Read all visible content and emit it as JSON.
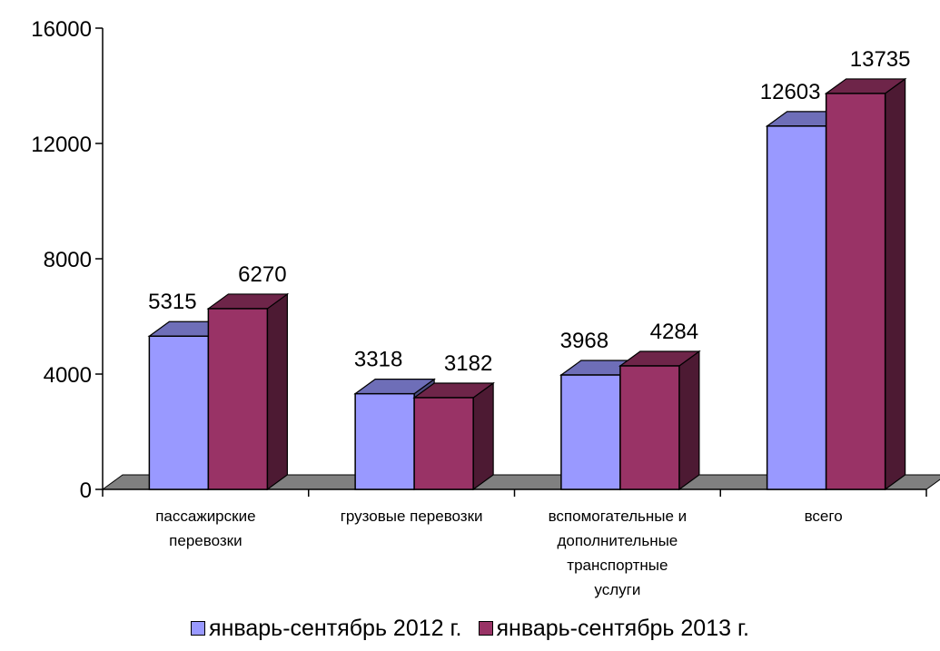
{
  "chart_data": {
    "type": "bar",
    "categories": [
      [
        "пассажирские",
        "перевозки"
      ],
      [
        "грузовые перевозки"
      ],
      [
        "вспомогательные и",
        "дополнительные",
        "транспортные",
        "услуги"
      ],
      [
        "всего"
      ]
    ],
    "series": [
      {
        "name": "январь-сентябрь 2012 г.",
        "values": [
          5315,
          3318,
          3968,
          12603
        ],
        "color": "#9999ff"
      },
      {
        "name": "январь-сентябрь 2013 г.",
        "values": [
          6270,
          3182,
          4284,
          13735
        ],
        "color": "#993366"
      }
    ],
    "yticks": [
      0,
      4000,
      8000,
      12000,
      16000
    ],
    "ylim": [
      0,
      16000
    ],
    "title": "",
    "xlabel": "",
    "ylabel": "",
    "grid": false,
    "three_d": true,
    "legend_position": "bottom"
  }
}
